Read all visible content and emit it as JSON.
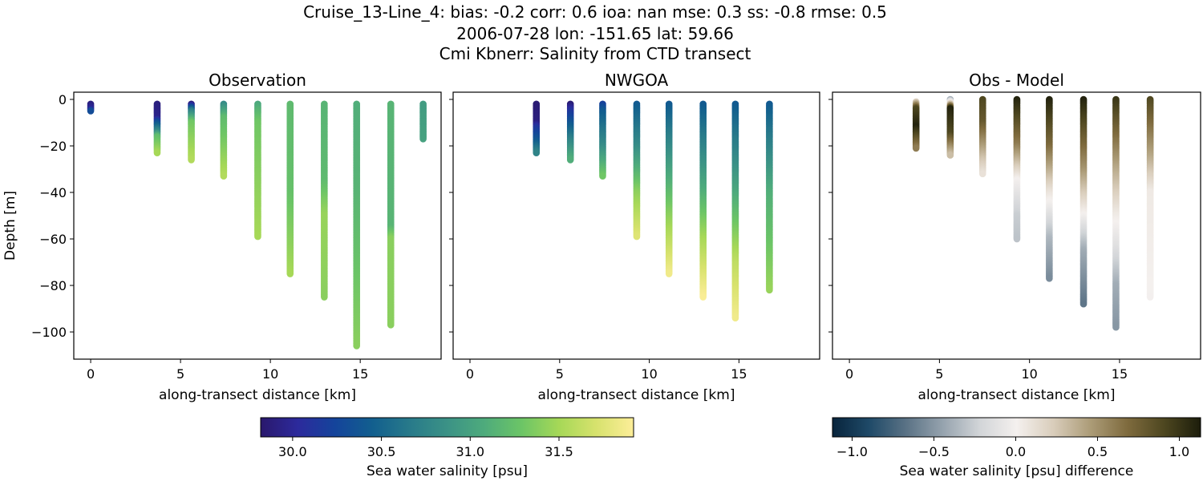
{
  "title_lines": [
    "Cruise_13-Line_4: bias: -0.2  corr: 0.6  ioa: nan  mse: 0.3  ss: -0.8  rmse: 0.5",
    "2006-07-28 lon: -151.65 lat: 59.66",
    "Cmi Kbnerr: Salinity from CTD transect"
  ],
  "chart_data": [
    {
      "type": "scatter",
      "title": "Observation",
      "xlabel": "along-transect distance [km]",
      "ylabel": "Depth [m]",
      "xlim": [
        -0.94,
        19.5
      ],
      "ylim": [
        -111.7,
        3.1
      ],
      "xticks": [
        0,
        5,
        10,
        15
      ],
      "yticks": [
        0,
        -20,
        -40,
        -60,
        -80,
        -100
      ],
      "colormap": "salinity",
      "profiles": [
        {
          "x": 0.0,
          "points": [
            [
              2,
              29.9
            ],
            [
              4,
              30.0
            ],
            [
              5,
              30.3
            ]
          ]
        },
        {
          "x": 3.7,
          "points": [
            [
              2,
              29.9
            ],
            [
              8,
              29.95
            ],
            [
              10,
              30.3
            ],
            [
              14,
              30.8
            ],
            [
              16,
              31.2
            ],
            [
              23,
              31.5
            ]
          ]
        },
        {
          "x": 5.6,
          "points": [
            [
              2,
              29.9
            ],
            [
              5,
              30.7
            ],
            [
              10,
              31.3
            ],
            [
              26,
              31.55
            ]
          ]
        },
        {
          "x": 7.4,
          "points": [
            [
              2,
              30.8
            ],
            [
              8,
              31.2
            ],
            [
              20,
              31.35
            ],
            [
              33,
              31.55
            ]
          ]
        },
        {
          "x": 9.3,
          "points": [
            [
              2,
              31.05
            ],
            [
              10,
              31.3
            ],
            [
              59,
              31.5
            ]
          ]
        },
        {
          "x": 11.1,
          "points": [
            [
              2,
              31.2
            ],
            [
              40,
              31.25
            ],
            [
              75,
              31.5
            ]
          ]
        },
        {
          "x": 13.0,
          "points": [
            [
              2,
              31.15
            ],
            [
              35,
              31.2
            ],
            [
              50,
              31.45
            ],
            [
              85,
              31.4
            ]
          ]
        },
        {
          "x": 14.8,
          "points": [
            [
              2,
              31.1
            ],
            [
              40,
              31.15
            ],
            [
              106,
              31.4
            ]
          ]
        },
        {
          "x": 16.7,
          "points": [
            [
              2,
              31.15
            ],
            [
              55,
              31.15
            ],
            [
              60,
              31.4
            ],
            [
              97,
              31.4
            ]
          ]
        },
        {
          "x": 18.5,
          "points": [
            [
              2,
              30.95
            ],
            [
              17,
              31.0
            ]
          ]
        }
      ]
    },
    {
      "type": "scatter",
      "title": "NWGOA",
      "xlabel": "along-transect distance [km]",
      "xlim": [
        -0.94,
        19.5
      ],
      "ylim": [
        -111.7,
        3.1
      ],
      "xticks": [
        0,
        5,
        10,
        15
      ],
      "colormap": "salinity",
      "profiles": [
        {
          "x": 3.7,
          "points": [
            [
              2,
              29.85
            ],
            [
              10,
              29.9
            ],
            [
              12,
              30.1
            ],
            [
              18,
              30.4
            ],
            [
              23,
              30.75
            ]
          ]
        },
        {
          "x": 5.6,
          "points": [
            [
              2,
              29.85
            ],
            [
              5,
              30.1
            ],
            [
              10,
              30.35
            ],
            [
              18,
              30.75
            ],
            [
              26,
              31.1
            ]
          ]
        },
        {
          "x": 7.4,
          "points": [
            [
              2,
              30.2
            ],
            [
              5,
              30.4
            ],
            [
              20,
              30.8
            ],
            [
              33,
              31.3
            ]
          ]
        },
        {
          "x": 9.3,
          "points": [
            [
              2,
              30.4
            ],
            [
              20,
              30.8
            ],
            [
              40,
              31.4
            ],
            [
              59,
              31.75
            ]
          ]
        },
        {
          "x": 11.1,
          "points": [
            [
              2,
              30.4
            ],
            [
              30,
              31.0
            ],
            [
              50,
              31.4
            ],
            [
              75,
              31.85
            ]
          ]
        },
        {
          "x": 13.0,
          "points": [
            [
              2,
              30.4
            ],
            [
              40,
              31.1
            ],
            [
              60,
              31.5
            ],
            [
              85,
              31.9
            ]
          ]
        },
        {
          "x": 14.8,
          "points": [
            [
              2,
              30.4
            ],
            [
              40,
              31.05
            ],
            [
              70,
              31.6
            ],
            [
              94,
              31.85
            ]
          ]
        },
        {
          "x": 16.7,
          "points": [
            [
              2,
              30.4
            ],
            [
              40,
              31.1
            ],
            [
              82,
              31.45
            ]
          ]
        }
      ]
    },
    {
      "type": "scatter",
      "title": "Obs - Model",
      "xlabel": "along-transect distance [km]",
      "xlim": [
        -0.94,
        19.5
      ],
      "ylim": [
        -111.7,
        3.1
      ],
      "xticks": [
        0,
        5,
        10,
        15
      ],
      "colormap": "difference",
      "profiles": [
        {
          "x": 3.7,
          "points": [
            [
              1,
              0.2
            ],
            [
              4,
              0.9
            ],
            [
              12,
              1.1
            ],
            [
              21,
              0.6
            ]
          ]
        },
        {
          "x": 5.6,
          "points": [
            [
              0,
              -0.4
            ],
            [
              2,
              0.3
            ],
            [
              4,
              1.1
            ],
            [
              15,
              0.9
            ],
            [
              24,
              0.3
            ]
          ]
        },
        {
          "x": 7.4,
          "points": [
            [
              0,
              0.9
            ],
            [
              10,
              0.8
            ],
            [
              25,
              0.3
            ],
            [
              32,
              0.1
            ]
          ]
        },
        {
          "x": 9.3,
          "points": [
            [
              0,
              1.1
            ],
            [
              20,
              0.6
            ],
            [
              35,
              0.0
            ],
            [
              50,
              -0.25
            ],
            [
              60,
              -0.3
            ]
          ]
        },
        {
          "x": 11.1,
          "points": [
            [
              0,
              1.1
            ],
            [
              20,
              0.7
            ],
            [
              40,
              0.1
            ],
            [
              60,
              -0.35
            ],
            [
              77,
              -0.55
            ]
          ]
        },
        {
          "x": 13.0,
          "points": [
            [
              0,
              1.1
            ],
            [
              30,
              0.5
            ],
            [
              50,
              0.0
            ],
            [
              65,
              -0.4
            ],
            [
              88,
              -0.65
            ]
          ]
        },
        {
          "x": 14.8,
          "points": [
            [
              0,
              1.0
            ],
            [
              30,
              0.4
            ],
            [
              50,
              0.05
            ],
            [
              65,
              -0.15
            ],
            [
              80,
              -0.4
            ],
            [
              98,
              -0.5
            ]
          ]
        },
        {
          "x": 16.7,
          "points": [
            [
              0,
              0.9
            ],
            [
              25,
              0.4
            ],
            [
              40,
              0.05
            ],
            [
              85,
              0.0
            ]
          ]
        }
      ]
    }
  ],
  "colorbars": {
    "salinity": {
      "label": "Sea water salinity [psu]",
      "range": [
        29.82,
        31.92
      ],
      "ticks": [
        "30.0",
        "30.5",
        "31.0",
        "31.5"
      ],
      "stops": [
        "#2a186c",
        "#2c2a9c",
        "#14449b",
        "#125f8e",
        "#287a8a",
        "#3b9286",
        "#4eab7c",
        "#6cc566",
        "#a6d857",
        "#d7e26d",
        "#fdee99"
      ]
    },
    "difference": {
      "label": "Sea water salinity [psu] difference",
      "range": [
        -1.12,
        1.13
      ],
      "ticks": [
        "−1.0",
        "−0.5",
        "0.0",
        "0.5",
        "1.0"
      ],
      "stops": [
        "#08243c",
        "#1f4a68",
        "#5a7285",
        "#96a3ae",
        "#d2d5d8",
        "#f4f0ee",
        "#d9cdbb",
        "#ac9c78",
        "#7f6b3e",
        "#4e4720",
        "#1c1d0b"
      ]
    }
  }
}
